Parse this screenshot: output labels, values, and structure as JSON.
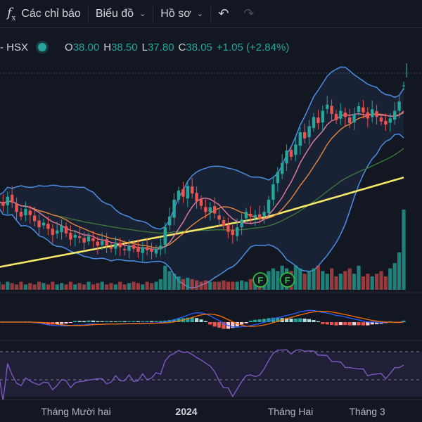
{
  "toolbar": {
    "indicators_label": "Các chỉ báo",
    "chart_label": "Biểu đồ",
    "profile_label": "Hồ sơ",
    "indicators_icon": "function-fx-icon",
    "undo_icon": "undo-icon",
    "redo_icon": "redo-icon"
  },
  "legend": {
    "symbol": "- HSX",
    "o_key": "O",
    "o_value": "38.00",
    "h_key": "H",
    "h_value": "38.50",
    "l_key": "L",
    "l_value": "37.80",
    "c_key": "C",
    "c_value": "38.05",
    "change": "+1.05 (+2.84%)"
  },
  "events": {
    "marker_label": "F"
  },
  "colors": {
    "up": "#26a69a",
    "down": "#ef5350",
    "bollinger": "#4a8ee6",
    "ma_short": "#e57ea0",
    "ma_mid": "#e8863a",
    "ma_long": "#3d7d3a",
    "ma_200": "#f7e967",
    "rsi": "#7e57c2",
    "macd": "#2962ff",
    "signal": "#ff6d00"
  },
  "xaxis": {
    "labels": [
      {
        "text": "Tháng Mười hai",
        "bold": false
      },
      {
        "text": "2024",
        "bold": true
      },
      {
        "text": "Tháng Hai",
        "bold": false
      },
      {
        "text": "Tháng 3",
        "bold": false
      }
    ]
  },
  "chart_data": {
    "type": "candlestick",
    "last": {
      "open": 38.0,
      "high": 38.5,
      "low": 37.8,
      "close": 38.05,
      "change": 1.05,
      "change_pct": 2.84
    },
    "closes": [
      30.5,
      30.2,
      30.8,
      30.4,
      29.8,
      29.5,
      30.0,
      29.6,
      29.2,
      28.8,
      29.1,
      28.7,
      28.3,
      28.6,
      28.9,
      28.4,
      28.0,
      28.3,
      28.1,
      27.8,
      28.2,
      27.9,
      27.6,
      27.9,
      27.6,
      27.4,
      27.7,
      27.5,
      27.3,
      27.6,
      27.4,
      27.2,
      27.5,
      27.3,
      27.2,
      27.4,
      27.6,
      28.8,
      29.5,
      30.6,
      31.2,
      30.8,
      31.5,
      31.0,
      30.5,
      30.2,
      29.8,
      30.1,
      29.7,
      29.3,
      28.9,
      28.5,
      28.3,
      28.8,
      29.3,
      29.8,
      29.5,
      29.6,
      29.4,
      29.8,
      30.6,
      31.6,
      32.4,
      33.0,
      33.8,
      33.4,
      34.2,
      35.0,
      34.6,
      35.4,
      36.0,
      35.6,
      36.4,
      36.8,
      36.2,
      35.8,
      36.4,
      36.0,
      35.6,
      36.2,
      36.7,
      36.3,
      35.9,
      36.5,
      36.0,
      35.7,
      35.5,
      35.9,
      36.4,
      37.0,
      38.05
    ],
    "volumes": [
      0.3,
      0.2,
      0.3,
      0.25,
      0.2,
      0.3,
      0.2,
      0.25,
      0.2,
      0.3,
      0.25,
      0.2,
      0.3,
      0.2,
      0.25,
      0.2,
      0.3,
      0.2,
      0.25,
      0.2,
      0.3,
      0.2,
      0.25,
      0.3,
      0.2,
      0.25,
      0.2,
      0.3,
      0.2,
      0.25,
      0.3,
      0.25,
      0.2,
      0.3,
      0.25,
      0.3,
      0.4,
      0.9,
      0.7,
      0.6,
      0.5,
      0.4,
      0.45,
      0.4,
      0.35,
      0.3,
      0.35,
      0.3,
      0.3,
      0.3,
      0.35,
      0.3,
      0.3,
      0.3,
      0.35,
      0.3,
      0.4,
      0.45,
      0.5,
      0.6,
      0.7,
      0.8,
      0.7,
      0.9,
      0.8,
      0.7,
      0.9,
      0.8,
      0.6,
      0.7,
      0.8,
      0.9,
      0.7,
      0.6,
      0.8,
      0.5,
      0.6,
      0.7,
      0.8,
      0.6,
      0.9,
      0.5,
      0.6,
      0.5,
      0.6,
      0.7,
      0.5,
      0.8,
      1.0,
      1.4,
      3.0
    ],
    "event_markers": [
      58,
      64
    ]
  }
}
